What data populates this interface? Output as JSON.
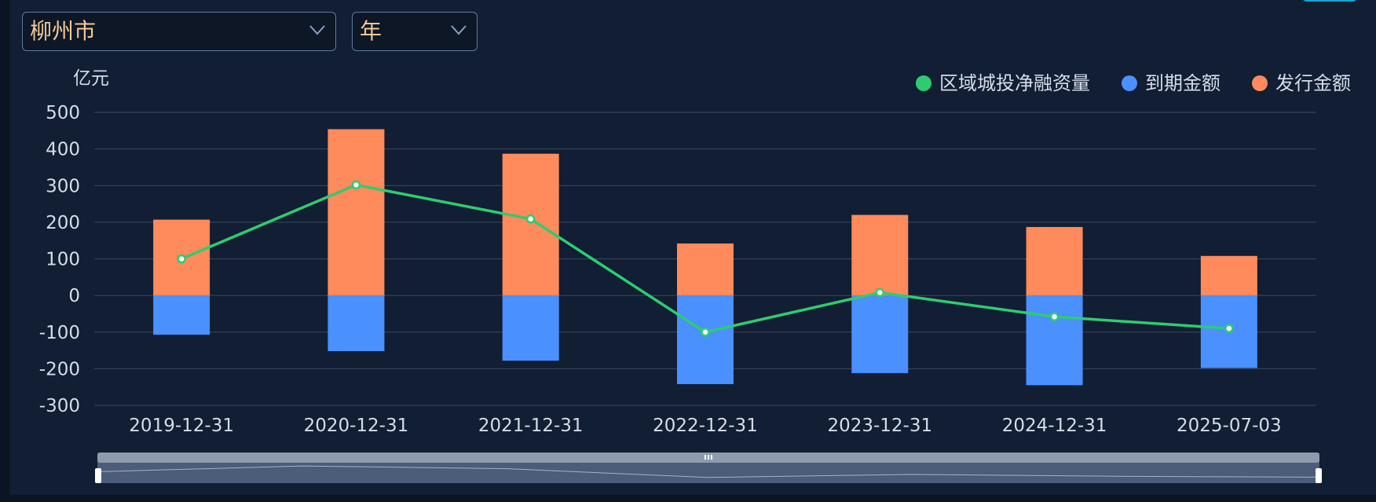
{
  "filters": {
    "city": "柳州市",
    "period": "年"
  },
  "colors": {
    "issuance": "#ff8a5b",
    "maturity": "#4a90ff",
    "net": "#2ecc71",
    "grid": "#3a4a63"
  },
  "chart_data": {
    "type": "bar",
    "ylabel": "亿元",
    "ylim": [
      -300,
      500
    ],
    "yticks": [
      500,
      400,
      300,
      200,
      100,
      0,
      -100,
      -200,
      -300
    ],
    "categories": [
      "2019-12-31",
      "2020-12-31",
      "2021-12-31",
      "2022-12-31",
      "2023-12-31",
      "2024-12-31",
      "2025-07-03"
    ],
    "legend_position": "top-right",
    "stacked": true,
    "series": [
      {
        "name": "区域城投净融资量",
        "type": "line",
        "values": [
          100,
          302,
          209,
          -100,
          8,
          -58,
          -90
        ]
      },
      {
        "name": "到期金额",
        "type": "bar",
        "values": [
          -107,
          -152,
          -178,
          -242,
          -212,
          -245,
          -198
        ]
      },
      {
        "name": "发行金额",
        "type": "bar",
        "values": [
          207,
          454,
          387,
          142,
          220,
          187,
          108
        ]
      }
    ]
  }
}
